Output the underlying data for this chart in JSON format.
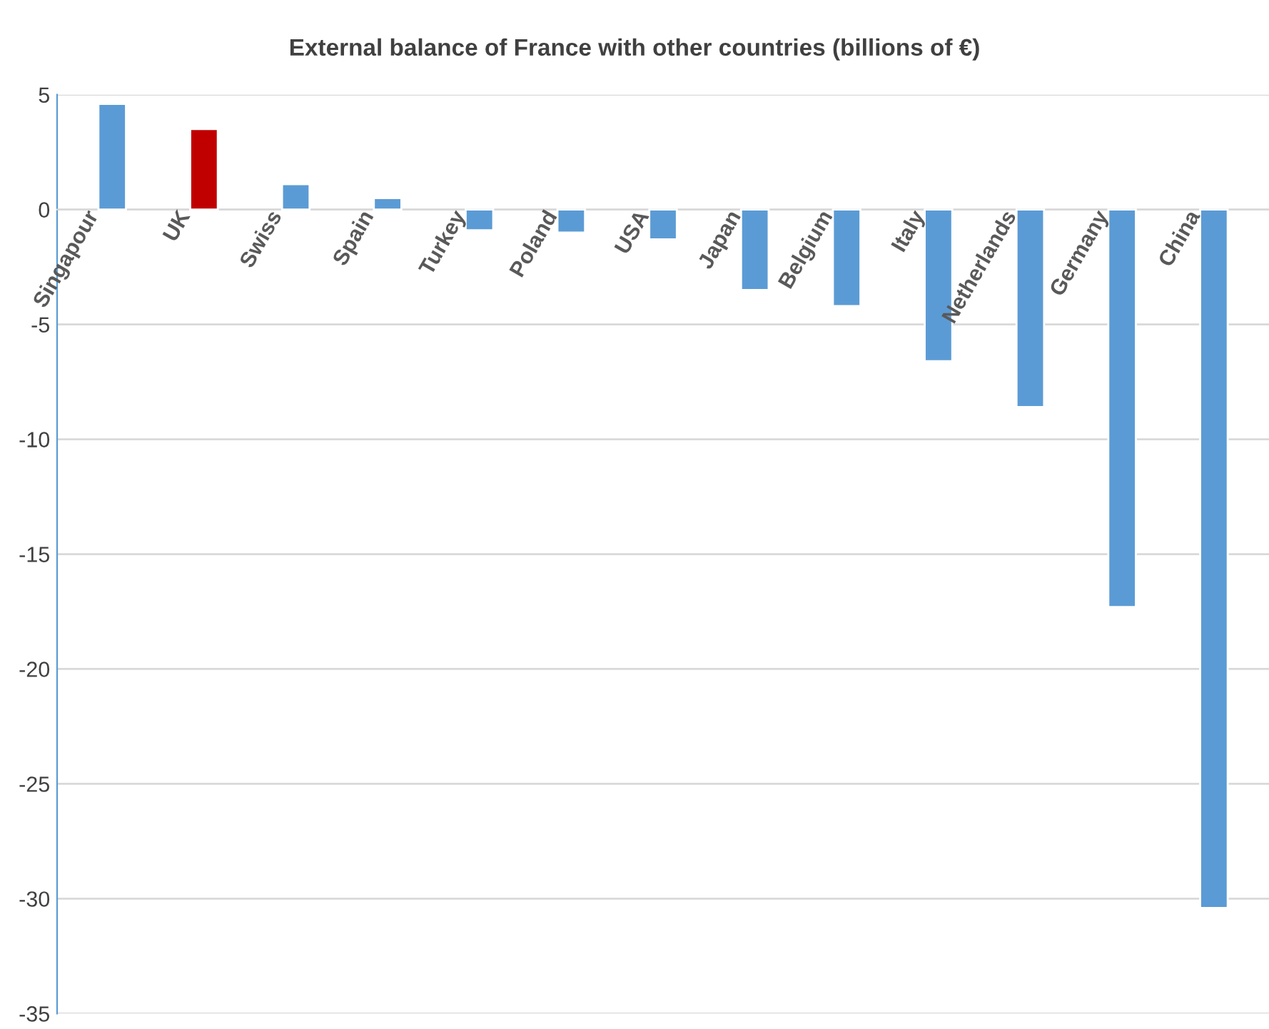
{
  "chart_data": {
    "type": "bar",
    "title": "External balance of France with other countries (billions of €)",
    "categories": [
      "Singapour",
      "UK",
      "Swiss",
      "Spain",
      "Turkey",
      "Poland",
      "USA",
      "Japan",
      "Belgium",
      "Italy",
      "Netherlands",
      "Germany",
      "China"
    ],
    "values": [
      4.6,
      3.5,
      1.1,
      0.5,
      -0.9,
      -1.0,
      -1.3,
      -3.5,
      -4.2,
      -6.6,
      -8.6,
      -17.3,
      -30.4
    ],
    "colors": [
      "#5b9bd5",
      "#c00000",
      "#5b9bd5",
      "#5b9bd5",
      "#5b9bd5",
      "#5b9bd5",
      "#5b9bd5",
      "#5b9bd5",
      "#5b9bd5",
      "#5b9bd5",
      "#5b9bd5",
      "#5b9bd5",
      "#5b9bd5"
    ],
    "ylim": [
      -35,
      5
    ],
    "yticks": [
      -35,
      -30,
      -25,
      -20,
      -15,
      -10,
      -5,
      0,
      5
    ],
    "grid": "y",
    "legend": false
  }
}
